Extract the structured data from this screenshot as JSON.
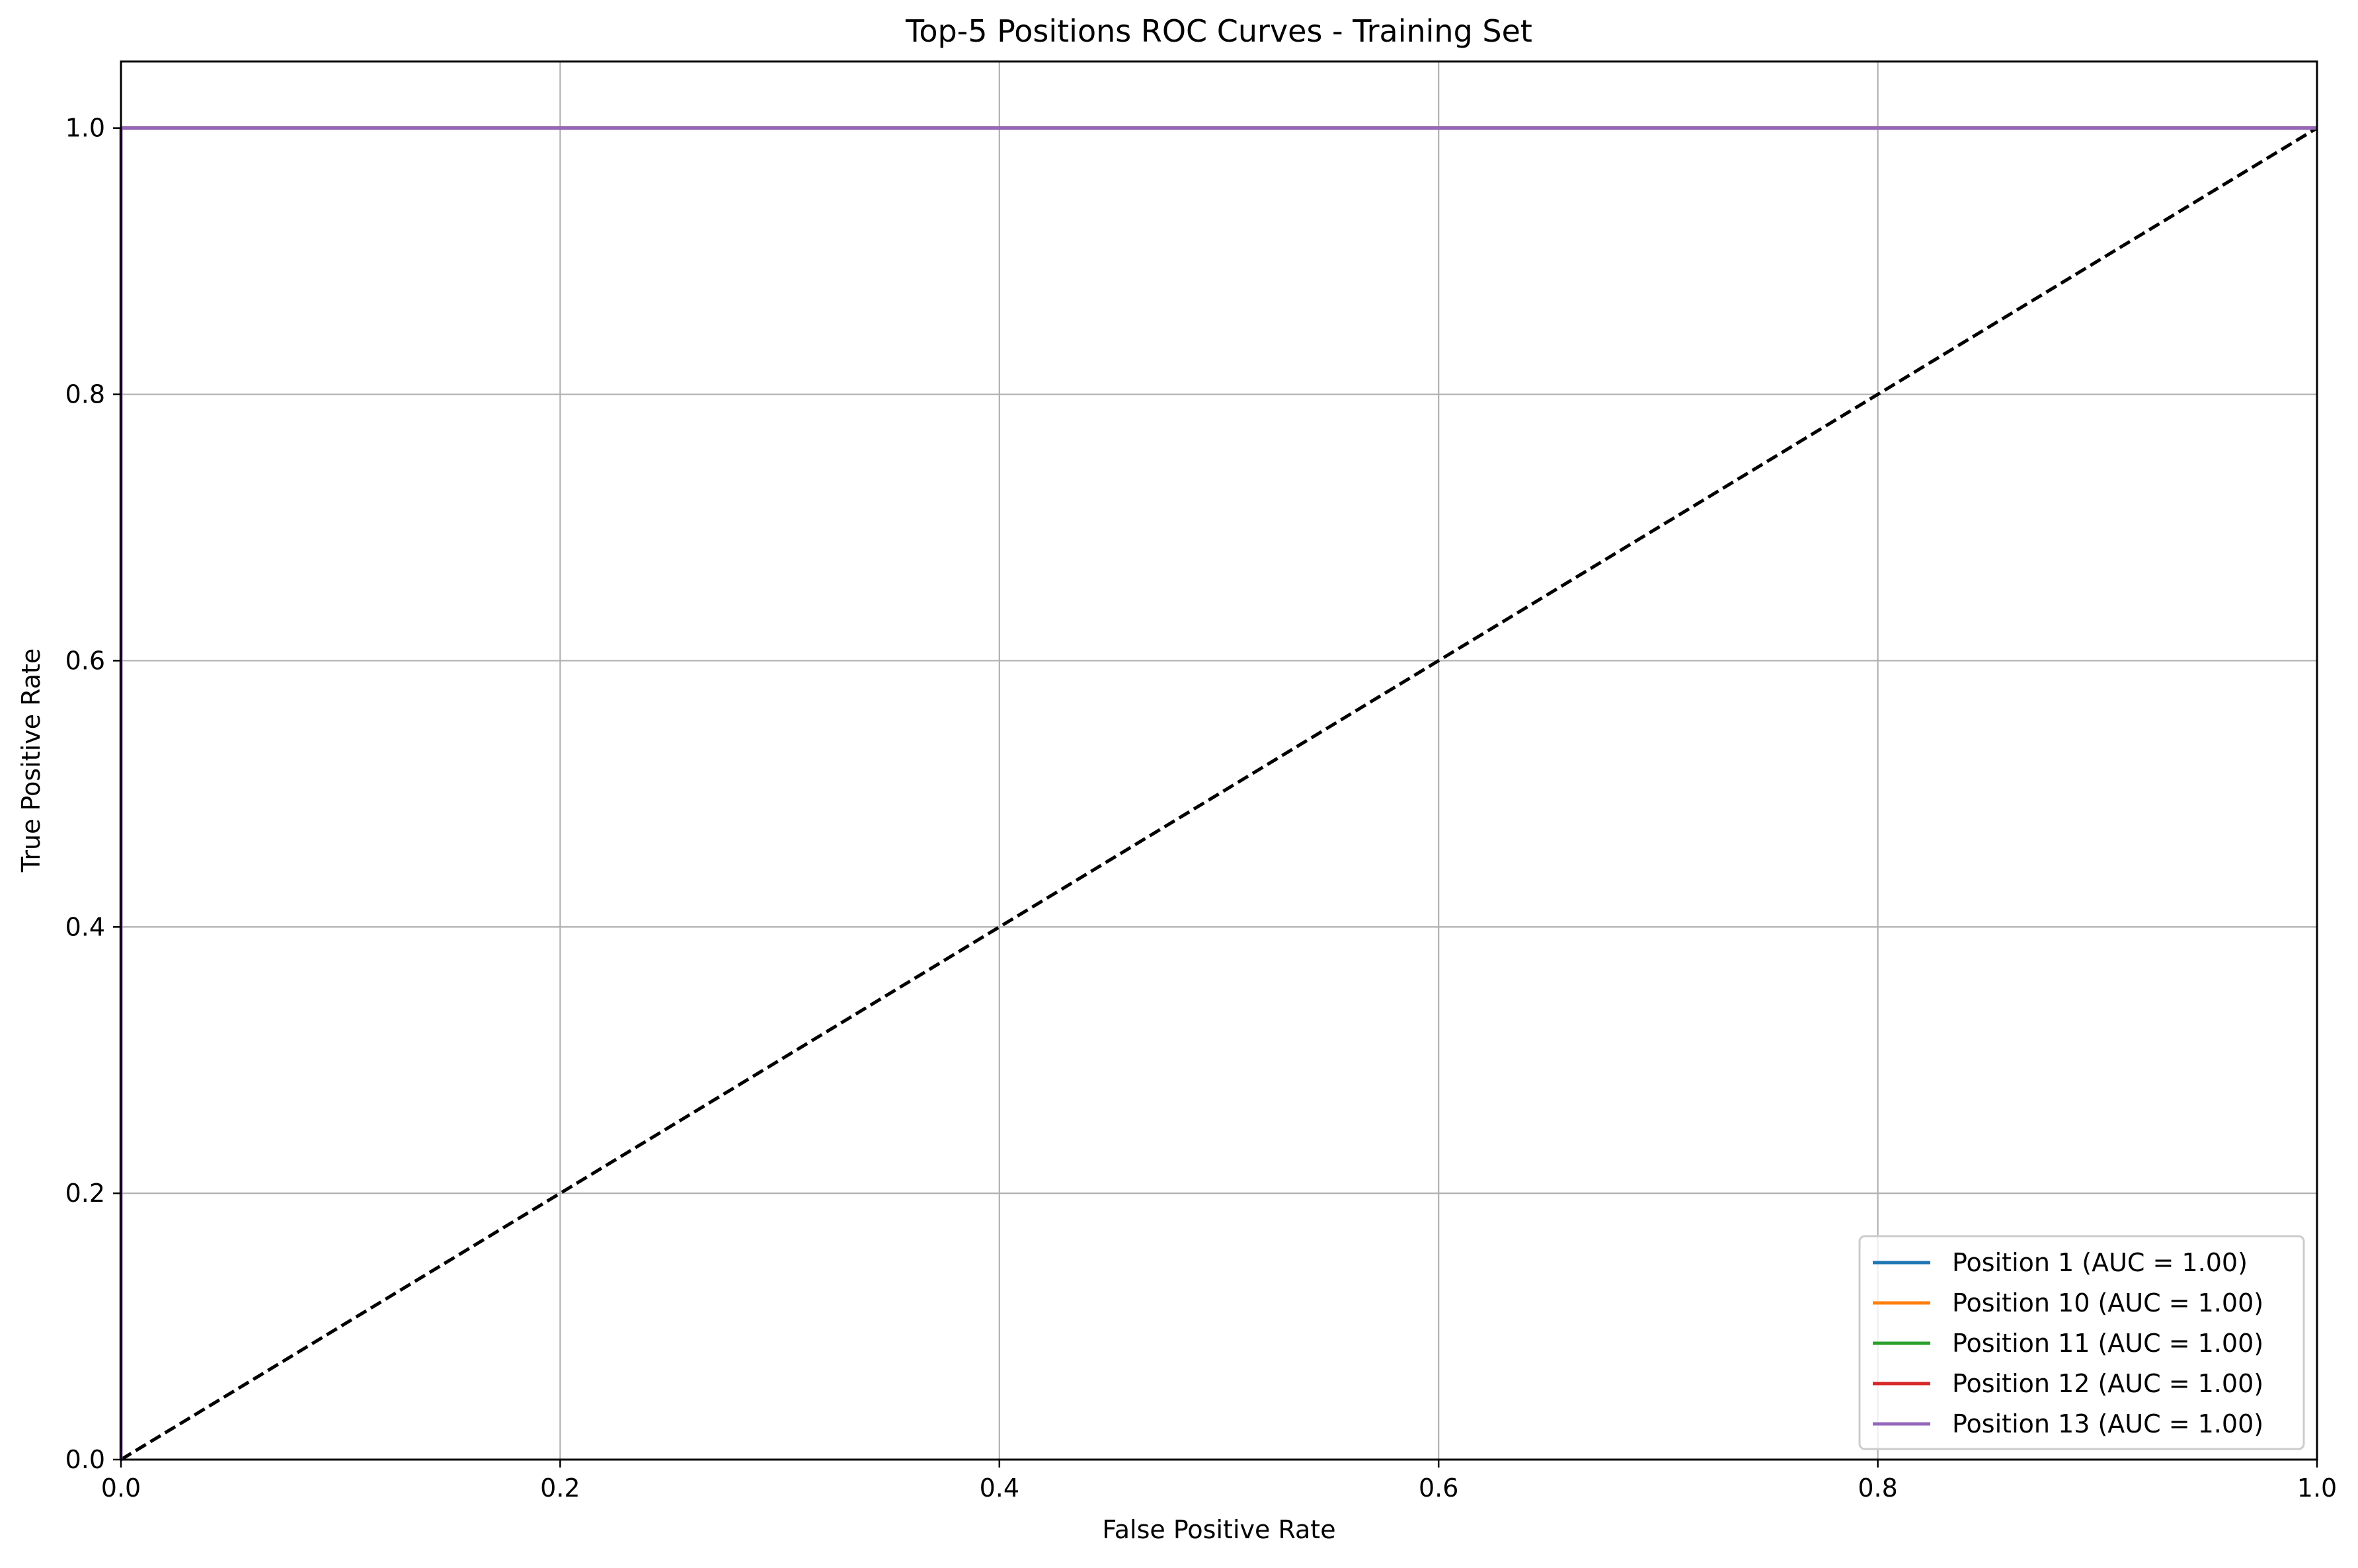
{
  "chart_data": {
    "type": "line",
    "title": "Top-5 Positions ROC Curves - Training Set",
    "xlabel": "False Positive Rate",
    "ylabel": "True Positive Rate",
    "xlim": [
      0.0,
      1.0
    ],
    "ylim": [
      0.0,
      1.05
    ],
    "x_ticks": [
      0.0,
      0.2,
      0.4,
      0.6,
      0.8,
      1.0
    ],
    "x_tick_labels": [
      "0.0",
      "0.2",
      "0.4",
      "0.6",
      "0.8",
      "1.0"
    ],
    "y_ticks": [
      0.0,
      0.2,
      0.4,
      0.6,
      0.8,
      1.0
    ],
    "y_tick_labels": [
      "0.0",
      "0.2",
      "0.4",
      "0.6",
      "0.8",
      "1.0"
    ],
    "grid": true,
    "legend_position": "lower-right",
    "series": [
      {
        "name": "Position 1 (AUC = 1.00)",
        "color": "#1f77b4",
        "x": [
          0.0,
          0.0,
          1.0
        ],
        "y": [
          0.0,
          1.0,
          1.0
        ]
      },
      {
        "name": "Position 10 (AUC = 1.00)",
        "color": "#ff7f0e",
        "x": [
          0.0,
          0.0,
          1.0
        ],
        "y": [
          0.0,
          1.0,
          1.0
        ]
      },
      {
        "name": "Position 11 (AUC = 1.00)",
        "color": "#2ca02c",
        "x": [
          0.0,
          0.0,
          1.0
        ],
        "y": [
          0.0,
          1.0,
          1.0
        ]
      },
      {
        "name": "Position 12 (AUC = 1.00)",
        "color": "#d62728",
        "x": [
          0.0,
          0.0,
          1.0
        ],
        "y": [
          0.0,
          1.0,
          1.0
        ]
      },
      {
        "name": "Position 13 (AUC = 1.00)",
        "color": "#9467bd",
        "x": [
          0.0,
          0.0,
          1.0
        ],
        "y": [
          0.0,
          1.0,
          1.0
        ]
      }
    ],
    "reference_line": {
      "x": [
        0.0,
        1.0
      ],
      "y": [
        0.0,
        1.0
      ],
      "color": "#000000",
      "style": "dashed"
    }
  }
}
